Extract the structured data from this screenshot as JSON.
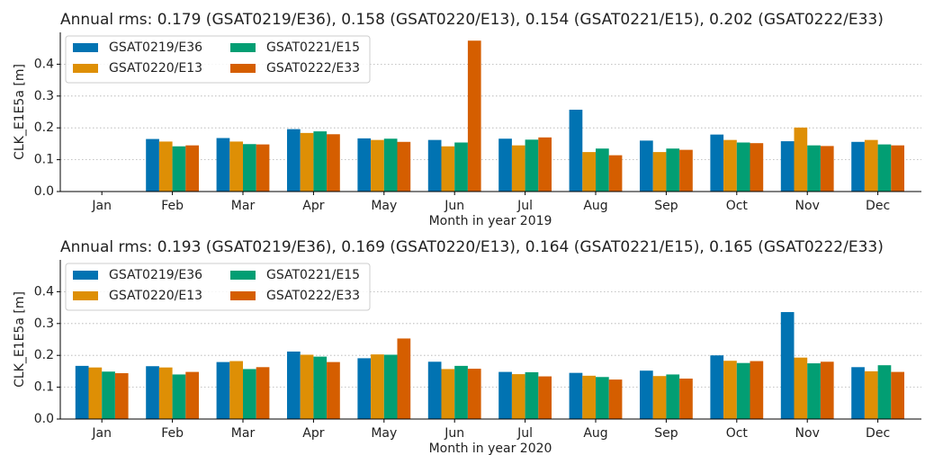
{
  "chart_data": [
    {
      "type": "bar",
      "title": "Annual rms: 0.179 (GSAT0219/E36), 0.158 (GSAT0220/E13), 0.154 (GSAT0221/E15), 0.202 (GSAT0222/E33)",
      "x_label": "Month in year 2019",
      "y_label": "CLK_E1E5a [m]",
      "categories": [
        "Jan",
        "Feb",
        "Mar",
        "Apr",
        "May",
        "Jun",
        "Jul",
        "Aug",
        "Sep",
        "Oct",
        "Nov",
        "Dec"
      ],
      "series": [
        {
          "name": "GSAT0219/E36",
          "color": "#0173b2",
          "values": [
            null,
            0.165,
            0.168,
            0.196,
            0.167,
            0.162,
            0.166,
            0.257,
            0.16,
            0.179,
            0.158,
            0.156
          ]
        },
        {
          "name": "GSAT0220/E13",
          "color": "#de8f05",
          "values": [
            null,
            0.157,
            0.157,
            0.184,
            0.162,
            0.142,
            0.145,
            0.124,
            0.124,
            0.162,
            0.201,
            0.162
          ]
        },
        {
          "name": "GSAT0221/E15",
          "color": "#029e73",
          "values": [
            null,
            0.142,
            0.149,
            0.189,
            0.166,
            0.154,
            0.163,
            0.135,
            0.135,
            0.154,
            0.145,
            0.148
          ]
        },
        {
          "name": "GSAT0222/E33",
          "color": "#d55e00",
          "values": [
            null,
            0.145,
            0.148,
            0.18,
            0.156,
            0.474,
            0.17,
            0.114,
            0.131,
            0.152,
            0.143,
            0.145
          ]
        }
      ],
      "ylim": [
        0,
        0.5
      ],
      "yticks": [
        {
          "value": 0,
          "label": "0.0"
        },
        0.1,
        0.2,
        0.3,
        0.4
      ],
      "grid": true,
      "legend": "upper left"
    },
    {
      "type": "bar",
      "title": "Annual rms: 0.193 (GSAT0219/E36), 0.169 (GSAT0220/E13), 0.164 (GSAT0221/E15), 0.165 (GSAT0222/E33)",
      "x_label": "Month in year 2020",
      "y_label": "CLK_E1E5a [m]",
      "categories": [
        "Jan",
        "Feb",
        "Mar",
        "Apr",
        "May",
        "Jun",
        "Jul",
        "Aug",
        "Sep",
        "Oct",
        "Nov",
        "Dec"
      ],
      "series": [
        {
          "name": "GSAT0219/E36",
          "color": "#0173b2",
          "values": [
            0.167,
            0.166,
            0.179,
            0.212,
            0.191,
            0.18,
            0.148,
            0.145,
            0.152,
            0.2,
            0.336,
            0.163
          ]
        },
        {
          "name": "GSAT0220/E13",
          "color": "#de8f05",
          "values": [
            0.162,
            0.162,
            0.182,
            0.202,
            0.203,
            0.157,
            0.141,
            0.136,
            0.135,
            0.183,
            0.193,
            0.15
          ]
        },
        {
          "name": "GSAT0221/E15",
          "color": "#029e73",
          "values": [
            0.149,
            0.14,
            0.157,
            0.196,
            0.202,
            0.167,
            0.147,
            0.132,
            0.14,
            0.176,
            0.175,
            0.169
          ]
        },
        {
          "name": "GSAT0222/E33",
          "color": "#d55e00",
          "values": [
            0.144,
            0.148,
            0.163,
            0.179,
            0.253,
            0.158,
            0.134,
            0.124,
            0.127,
            0.182,
            0.18,
            0.148
          ]
        }
      ],
      "ylim": [
        0,
        0.5
      ],
      "yticks": [
        {
          "value": 0,
          "label": "0.0"
        },
        0.1,
        0.2,
        0.3,
        0.4
      ],
      "grid": true,
      "legend": "upper left"
    }
  ]
}
